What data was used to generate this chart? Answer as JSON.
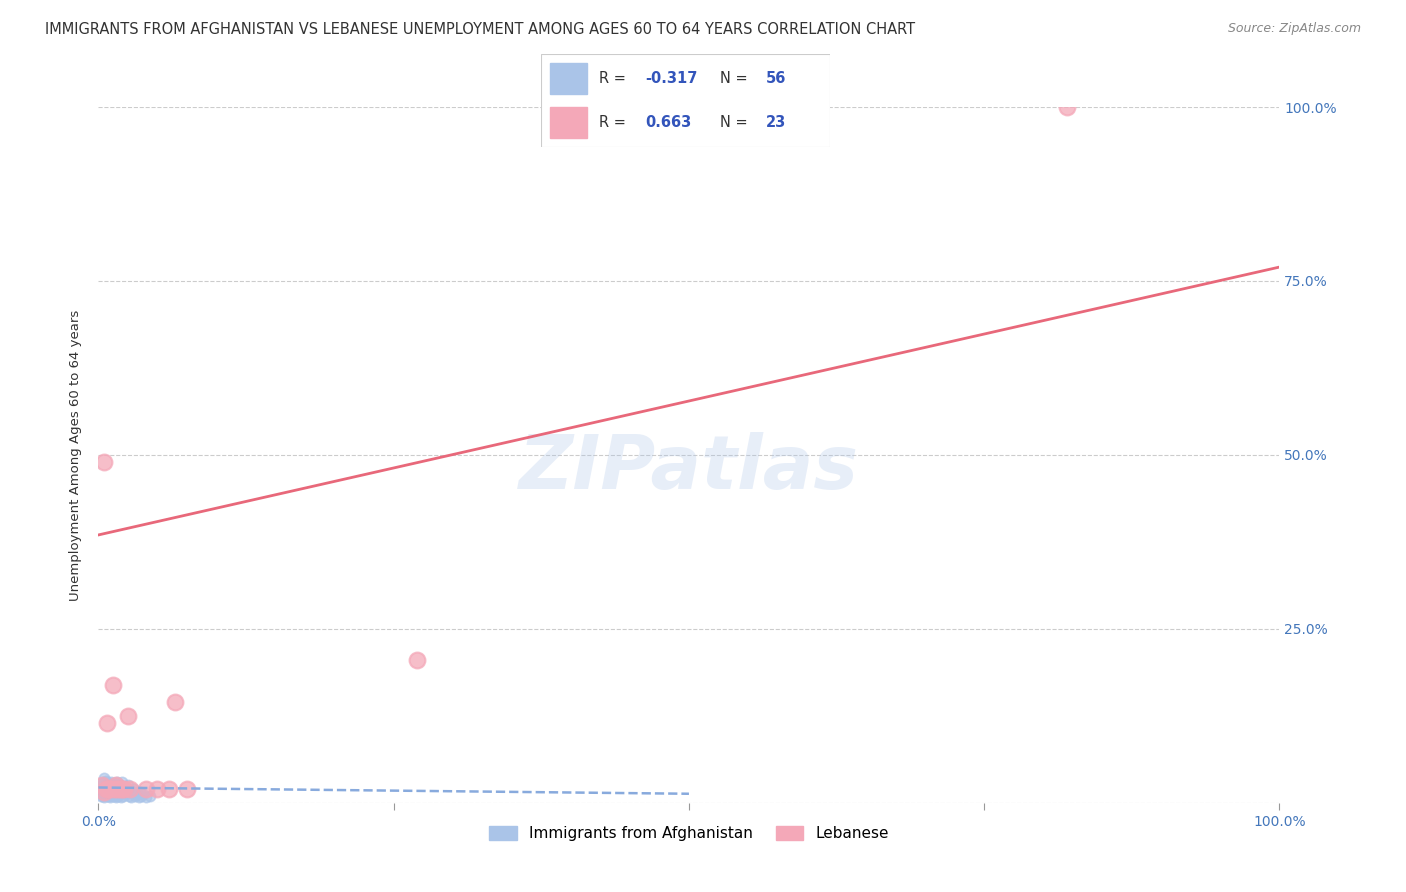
{
  "title": "IMMIGRANTS FROM AFGHANISTAN VS LEBANESE UNEMPLOYMENT AMONG AGES 60 TO 64 YEARS CORRELATION CHART",
  "source": "Source: ZipAtlas.com",
  "ylabel": "Unemployment Among Ages 60 to 64 years",
  "xlim": [
    0,
    1.0
  ],
  "ylim": [
    0,
    1.0
  ],
  "xtick_labels": [
    "0.0%",
    "",
    "",
    "",
    "100.0%"
  ],
  "xtick_positions": [
    0.0,
    0.25,
    0.5,
    0.75,
    1.0
  ],
  "ytick_labels": [
    "",
    "25.0%",
    "50.0%",
    "75.0%",
    "100.0%"
  ],
  "ytick_positions": [
    0.0,
    0.25,
    0.5,
    0.75,
    1.0
  ],
  "grid_color": "#cccccc",
  "background_color": "#ffffff",
  "watermark": "ZIPatlas",
  "afg_R": "-0.317",
  "afg_N": "56",
  "leb_R": "0.663",
  "leb_N": "23",
  "legend_labels": [
    "Immigrants from Afghanistan",
    "Lebanese"
  ],
  "afghanistan_x": [
    0.002,
    0.003,
    0.003,
    0.004,
    0.004,
    0.005,
    0.005,
    0.005,
    0.006,
    0.006,
    0.006,
    0.007,
    0.007,
    0.008,
    0.008,
    0.009,
    0.009,
    0.01,
    0.01,
    0.011,
    0.011,
    0.012,
    0.012,
    0.013,
    0.013,
    0.014,
    0.014,
    0.015,
    0.015,
    0.016,
    0.016,
    0.017,
    0.018,
    0.018,
    0.019,
    0.02,
    0.02,
    0.021,
    0.022,
    0.023,
    0.024,
    0.025,
    0.026,
    0.027,
    0.028,
    0.029,
    0.03,
    0.031,
    0.032,
    0.033,
    0.034,
    0.035,
    0.036,
    0.038,
    0.04,
    0.044
  ],
  "afghanistan_y": [
    0.01,
    0.015,
    0.025,
    0.01,
    0.03,
    0.008,
    0.02,
    0.035,
    0.012,
    0.022,
    0.032,
    0.01,
    0.025,
    0.015,
    0.028,
    0.01,
    0.022,
    0.008,
    0.02,
    0.012,
    0.03,
    0.01,
    0.025,
    0.015,
    0.028,
    0.01,
    0.022,
    0.008,
    0.02,
    0.012,
    0.03,
    0.01,
    0.015,
    0.025,
    0.008,
    0.018,
    0.03,
    0.01,
    0.022,
    0.012,
    0.015,
    0.025,
    0.01,
    0.018,
    0.008,
    0.015,
    0.02,
    0.01,
    0.015,
    0.012,
    0.008,
    0.015,
    0.01,
    0.012,
    0.008,
    0.01
  ],
  "lebanese_x": [
    0.003,
    0.005,
    0.006,
    0.007,
    0.008,
    0.01,
    0.012,
    0.013,
    0.015,
    0.016,
    0.018,
    0.02,
    0.022,
    0.025,
    0.027,
    0.04,
    0.05,
    0.06,
    0.065,
    0.075,
    0.27,
    0.82,
    0.005
  ],
  "lebanese_y": [
    0.025,
    0.015,
    0.02,
    0.115,
    0.02,
    0.02,
    0.17,
    0.02,
    0.025,
    0.02,
    0.02,
    0.02,
    0.02,
    0.125,
    0.02,
    0.02,
    0.02,
    0.02,
    0.145,
    0.02,
    0.205,
    1.0,
    0.49
  ],
  "leb_trendline_x0": 0.0,
  "leb_trendline_y0": 0.385,
  "leb_trendline_x1": 1.0,
  "leb_trendline_y1": 0.77,
  "afg_trendline_x0": 0.0,
  "afg_trendline_y0": 0.022,
  "afg_trendline_x1": 0.5,
  "afg_trendline_y1": 0.013,
  "afg_trendline_color": "#88aadd",
  "leb_trendline_color": "#e8687a",
  "scatter_afg_color": "#aac4e8",
  "scatter_leb_color": "#f4a8b8",
  "scatter_afg_size": 55,
  "scatter_leb_size": 130,
  "axis_label_color": "#4477bb",
  "title_color": "#333333",
  "title_fontsize": 10.5,
  "source_fontsize": 9,
  "ylabel_fontsize": 9.5,
  "tick_fontsize": 10,
  "watermark_color": "#aac4e8",
  "watermark_alpha": 0.28,
  "watermark_fontsize": 54
}
